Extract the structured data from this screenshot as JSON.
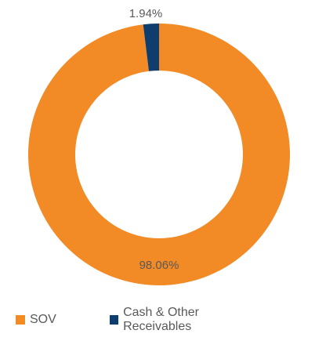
{
  "colors": {
    "sov": "#f28a25",
    "cash": "#0f3d6e",
    "label": "#595959"
  },
  "chart_data": {
    "type": "pie",
    "title": "",
    "donut": true,
    "legend_placement": "bottom-left",
    "slices": [
      {
        "name": "SOV",
        "value": 98.06,
        "label": "98.06%",
        "color": "#f28a25"
      },
      {
        "name": "Cash & Other Receivables",
        "value": 1.94,
        "label": "1.94%",
        "color": "#0f3d6e"
      }
    ]
  },
  "legend": {
    "items": [
      {
        "label": "SOV",
        "color": "#f28a25"
      },
      {
        "label": "Cash & Other Receivables",
        "color": "#0f3d6e"
      }
    ]
  }
}
